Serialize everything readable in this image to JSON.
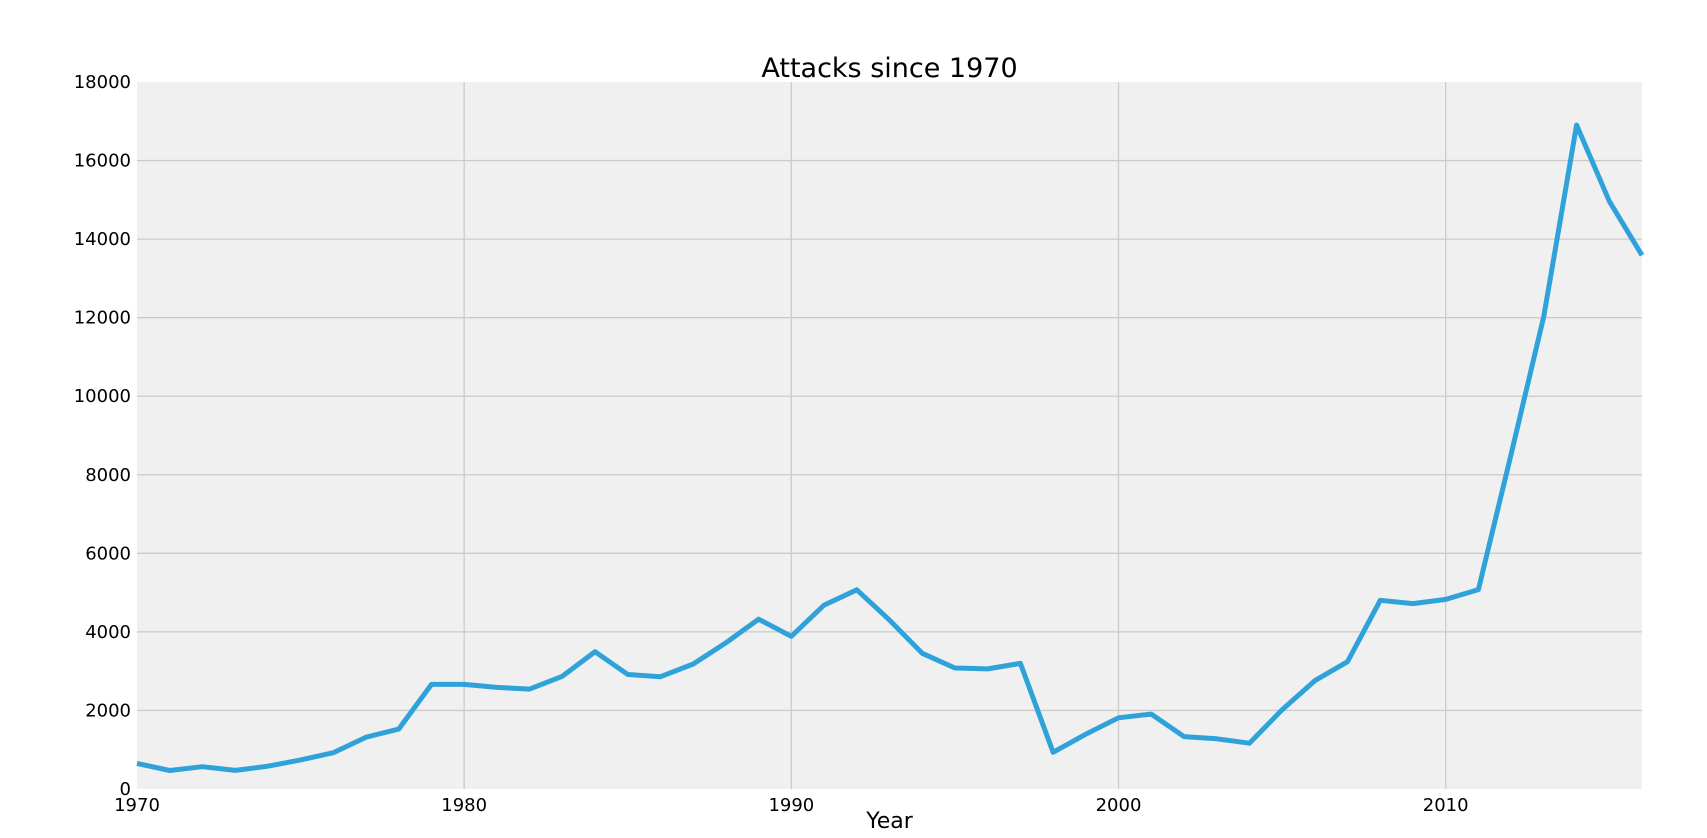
{
  "chart_data": {
    "type": "line",
    "title": "Attacks since 1970",
    "xlabel": "Year",
    "ylabel": "",
    "xlim": [
      1970,
      2016
    ],
    "ylim": [
      0,
      18000
    ],
    "xticks": [
      1970,
      1980,
      1990,
      2000,
      2010
    ],
    "yticks": [
      0,
      2000,
      4000,
      6000,
      8000,
      10000,
      12000,
      14000,
      16000,
      18000
    ],
    "grid": true,
    "colors": {
      "line": "#30a2da",
      "plot_bg": "#f0f0f0",
      "grid": "#cbcbcb"
    },
    "series": [
      {
        "x": [
          1970,
          1971,
          1972,
          1973,
          1974,
          1975,
          1976,
          1977,
          1978,
          1979,
          1980,
          1981,
          1982,
          1983,
          1984,
          1985,
          1986,
          1987,
          1988,
          1989,
          1990,
          1991,
          1992,
          1993,
          1994,
          1995,
          1996,
          1997,
          1998,
          1999,
          2000,
          2001,
          2002,
          2003,
          2004,
          2005,
          2006,
          2007,
          2008,
          2009,
          2010,
          2011,
          2012,
          2013,
          2014,
          2015,
          2016
        ],
        "y": [
          651,
          471,
          568,
          473,
          581,
          740,
          923,
          1319,
          1526,
          2662,
          2662,
          2586,
          2544,
          2870,
          3495,
          2915,
          2860,
          3183,
          3721,
          4323,
          3887,
          4683,
          5071,
          4300,
          3456,
          3081,
          3058,
          3197,
          934,
          1395,
          1814,
          1906,
          1333,
          1278,
          1166,
          2017,
          2758,
          3242,
          4805,
          4721,
          4826,
          5076,
          8522,
          12036,
          16903,
          14965,
          13587
        ]
      }
    ]
  }
}
